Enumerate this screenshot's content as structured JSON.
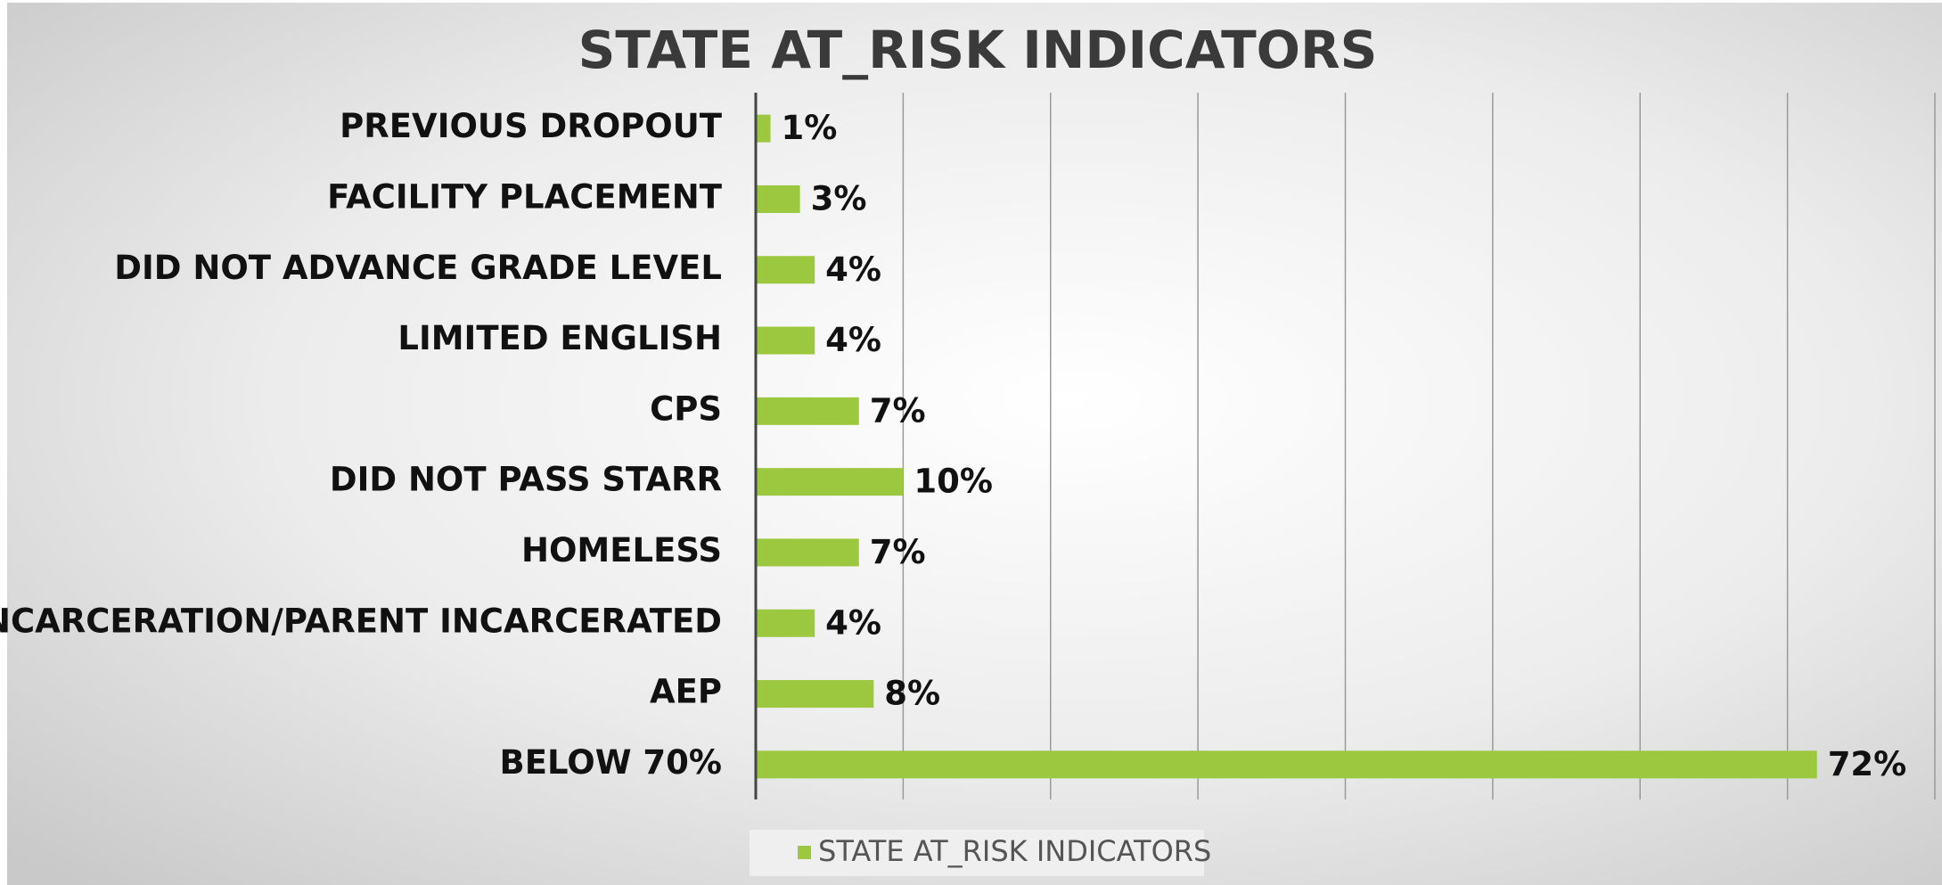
{
  "chart_data": {
    "type": "bar",
    "orientation": "horizontal",
    "title": "STATE AT_RISK INDICATORS",
    "categories": [
      "PREVIOUS DROPOUT",
      "FACILITY PLACEMENT",
      "DID NOT ADVANCE GRADE LEVEL",
      "LIMITED ENGLISH",
      "CPS",
      "DID NOT PASS STARR",
      "HOMELESS",
      "INCARCERATION/PARENT INCARCERATED",
      "AEP",
      "BELOW 70%"
    ],
    "series": [
      {
        "name": "STATE AT_RISK INDICATORS",
        "color": "#9bc83f",
        "values": [
          1,
          3,
          4,
          4,
          7,
          10,
          7,
          4,
          8,
          72
        ],
        "value_labels": [
          "1%",
          "3%",
          "4%",
          "4%",
          "7%",
          "10%",
          "7%",
          "4%",
          "8%",
          "72%"
        ]
      }
    ],
    "xlim": [
      0,
      80
    ],
    "xticks": [
      0,
      10,
      20,
      30,
      40,
      50,
      60,
      70,
      80
    ],
    "grid": true,
    "legend": "bottom"
  }
}
